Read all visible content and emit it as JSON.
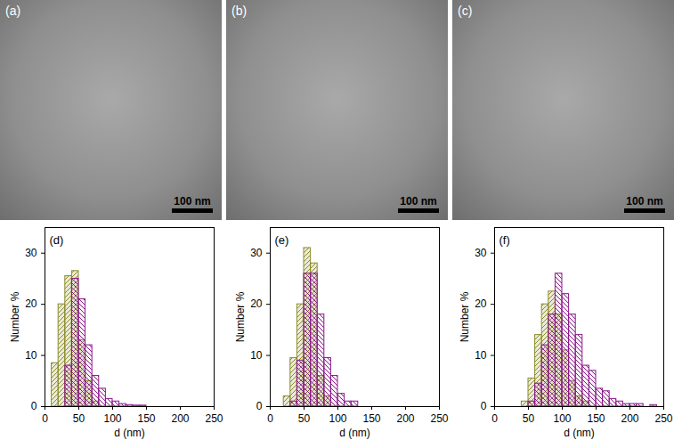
{
  "micrographs": [
    {
      "label": "(a)",
      "scale_bar": "100 nm"
    },
    {
      "label": "(b)",
      "scale_bar": "100 nm"
    },
    {
      "label": "(c)",
      "scale_bar": "100 nm"
    }
  ],
  "chart_data": [
    {
      "type": "histogram",
      "title": "(d)",
      "xlabel": "d (nm)",
      "ylabel": "Number %",
      "bins": [
        0,
        10,
        20,
        30,
        40,
        50,
        60,
        70,
        80,
        90,
        100,
        110,
        120,
        130,
        140,
        150,
        160,
        170,
        180,
        190,
        200,
        210,
        220,
        230,
        240,
        250
      ],
      "series": [
        {
          "color": "#8c8c2a",
          "values": [
            0,
            8.5,
            20,
            25.5,
            26.5,
            13,
            5,
            1,
            0,
            0,
            0,
            0,
            0,
            0,
            0,
            0,
            0,
            0,
            0,
            0,
            0,
            0,
            0,
            0,
            0
          ]
        },
        {
          "color": "#8b1a8b",
          "values": [
            0,
            0,
            0,
            8,
            25,
            21,
            12,
            6,
            3.5,
            1.5,
            1,
            0.5,
            0.3,
            0.2,
            0.2,
            0,
            0,
            0,
            0,
            0,
            0,
            0,
            0,
            0,
            0
          ]
        }
      ],
      "xlim": [
        0,
        250
      ],
      "xticks": [
        0,
        50,
        100,
        150,
        200,
        250
      ],
      "ylim": [
        0,
        35
      ],
      "yticks": [
        0,
        10,
        20,
        30
      ]
    },
    {
      "type": "histogram",
      "title": "(e)",
      "xlabel": "d (nm)",
      "ylabel": "Number %",
      "bins": [
        0,
        10,
        20,
        30,
        40,
        50,
        60,
        70,
        80,
        90,
        100,
        110,
        120,
        130,
        140,
        150,
        160,
        170,
        180,
        190,
        200,
        210,
        220,
        230,
        240,
        250
      ],
      "series": [
        {
          "color": "#8c8c2a",
          "values": [
            0,
            0,
            2,
            9.5,
            20,
            31,
            28,
            6,
            2,
            0,
            0,
            0,
            0,
            0,
            0,
            0,
            0,
            0,
            0,
            0,
            0,
            0,
            0,
            0,
            0
          ]
        },
        {
          "color": "#8b1a8b",
          "values": [
            0,
            0,
            0,
            1,
            9,
            26,
            26,
            18,
            9.5,
            6,
            2.5,
            1,
            1,
            0,
            0,
            0,
            0,
            0,
            0,
            0,
            0,
            0,
            0,
            0,
            0
          ]
        }
      ],
      "xlim": [
        0,
        250
      ],
      "xticks": [
        0,
        50,
        100,
        150,
        200,
        250
      ],
      "ylim": [
        0,
        35
      ],
      "yticks": [
        0,
        10,
        20,
        30
      ]
    },
    {
      "type": "histogram",
      "title": "(f)",
      "xlabel": "d (nm)",
      "ylabel": "Number %",
      "bins": [
        0,
        10,
        20,
        30,
        40,
        50,
        60,
        70,
        80,
        90,
        100,
        110,
        120,
        130,
        140,
        150,
        160,
        170,
        180,
        190,
        200,
        210,
        220,
        230,
        240,
        250
      ],
      "series": [
        {
          "color": "#8c8c2a",
          "values": [
            0,
            0,
            0,
            0,
            1,
            5.5,
            14,
            20,
            22.5,
            18,
            11,
            5,
            2,
            1,
            0,
            0,
            0,
            0,
            0,
            0,
            0,
            0,
            0,
            0,
            0
          ]
        },
        {
          "color": "#8b1a8b",
          "values": [
            0,
            0,
            0,
            0,
            0,
            1,
            4.5,
            12,
            18,
            26,
            22,
            18,
            14,
            8,
            7,
            3.5,
            3,
            1.5,
            1,
            0.5,
            0.5,
            0.5,
            0,
            0.3,
            0
          ]
        }
      ],
      "xlim": [
        0,
        250
      ],
      "xticks": [
        0,
        50,
        100,
        150,
        200,
        250
      ],
      "ylim": [
        0,
        35
      ],
      "yticks": [
        0,
        10,
        20,
        30
      ]
    }
  ]
}
